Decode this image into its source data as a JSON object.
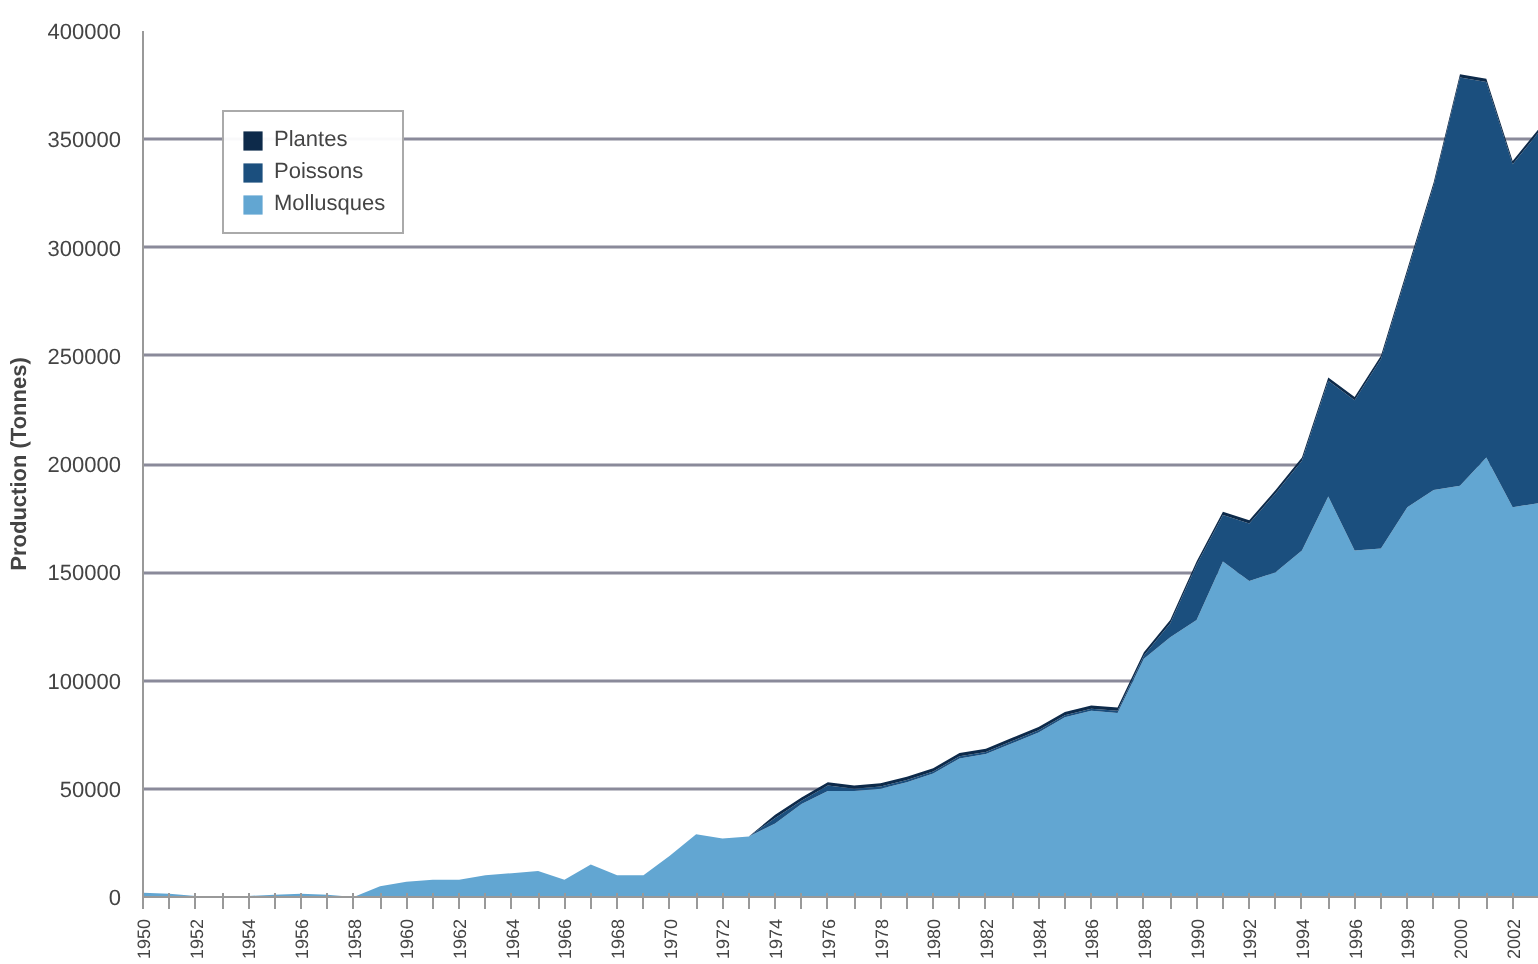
{
  "chart_data": {
    "type": "area",
    "stacked": true,
    "ylabel": "Production (Tonnes)",
    "categories": [
      "1950",
      null,
      "1952",
      null,
      "1954",
      null,
      "1956",
      null,
      "1958",
      null,
      "1960",
      null,
      "1962",
      null,
      "1964",
      null,
      "1966",
      null,
      "1968",
      null,
      "1970",
      null,
      "1972",
      null,
      "1974",
      null,
      "1976",
      null,
      "1978",
      null,
      "1980",
      null,
      "1982",
      null,
      "1984",
      null,
      "1986",
      null,
      "1988",
      null,
      "1990",
      null,
      "1992",
      null,
      "1994",
      null,
      "1996",
      null,
      "1998",
      null,
      "2000",
      null,
      "2002",
      null
    ],
    "series": [
      {
        "name": "Mollusques",
        "color": "#62a6d2",
        "values": [
          2000,
          1500,
          500,
          500,
          500,
          1000,
          1500,
          1000,
          0,
          5000,
          7000,
          8000,
          8000,
          10000,
          11000,
          12000,
          8000,
          15000,
          10000,
          10000,
          19000,
          29000,
          27000,
          28000,
          34000,
          43000,
          49000,
          49000,
          50000,
          53000,
          57000,
          64000,
          66000,
          71000,
          76000,
          83000,
          86000,
          85000,
          110000,
          120000,
          128000,
          155000,
          146000,
          150000,
          160000,
          185000,
          160000,
          161000,
          180000,
          188000,
          190000,
          203000,
          180000,
          182000
        ]
      },
      {
        "name": "Poissons",
        "color": "#1b4f7e",
        "values": [
          0,
          0,
          0,
          0,
          0,
          0,
          0,
          0,
          0,
          0,
          0,
          0,
          0,
          0,
          0,
          0,
          0,
          0,
          0,
          0,
          0,
          0,
          0,
          0,
          2500,
          1500,
          2500,
          1000,
          1000,
          1000,
          1000,
          1000,
          1000,
          1000,
          1000,
          1000,
          1000,
          1000,
          1500,
          6500,
          25500,
          21500,
          26500,
          36500,
          41500,
          53500,
          69500,
          87500,
          108500,
          140500,
          188500,
          173500,
          158500,
          171500
        ]
      },
      {
        "name": "Plantes",
        "color": "#0d2a4a",
        "values": [
          0,
          0,
          0,
          0,
          0,
          0,
          0,
          0,
          0,
          0,
          0,
          0,
          0,
          0,
          0,
          0,
          0,
          0,
          0,
          0,
          0,
          0,
          0,
          0,
          1500,
          1500,
          1500,
          1500,
          1500,
          1500,
          1500,
          1500,
          1500,
          1500,
          1500,
          1500,
          1500,
          1500,
          1500,
          1500,
          1500,
          1500,
          1500,
          1500,
          1500,
          1500,
          1500,
          1500,
          1500,
          1500,
          1500,
          1500,
          1500,
          1500
        ]
      }
    ],
    "ylim": [
      0,
      400000
    ],
    "yticks": [
      0,
      50000,
      100000,
      150000,
      200000,
      250000,
      300000,
      350000,
      400000
    ],
    "grid": "y",
    "legend": "top left"
  }
}
